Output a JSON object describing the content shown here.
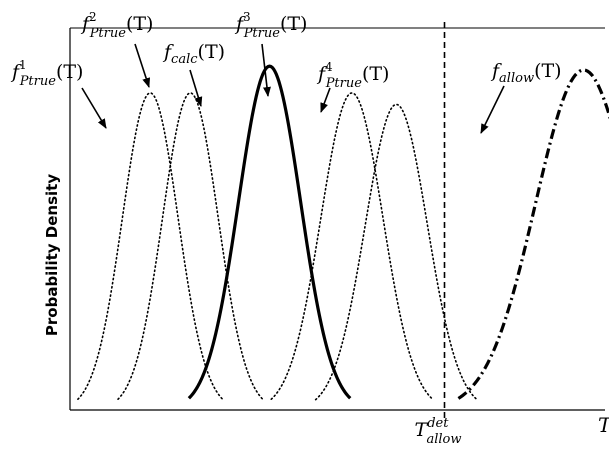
{
  "chart_data": {
    "type": "line",
    "title": "",
    "xlabel": "T",
    "ylabel": "Probability Density",
    "xlim": [
      0,
      10
    ],
    "ylim": [
      0,
      1.0
    ],
    "grid": false,
    "series": [
      {
        "name": "f^1_Ptrue(T)",
        "base": "f",
        "sub": "Ptrue",
        "sup": "1",
        "arg": "(T)",
        "style": "dotted",
        "mean": 1.5,
        "sd": 0.52,
        "amp": 0.83
      },
      {
        "name": "f^2_Ptrue(T)",
        "base": "f",
        "sub": "Ptrue",
        "sup": "2",
        "arg": "(T)",
        "style": "dotted",
        "mean": 2.25,
        "sd": 0.52,
        "amp": 0.83
      },
      {
        "name": "f_calc(T)",
        "base": "f",
        "sub": "calc",
        "sup": "",
        "arg": "(T)",
        "style": "solid",
        "mean": 3.73,
        "sd": 0.58,
        "amp": 0.9
      },
      {
        "name": "f^3_Ptrue(T)",
        "base": "f",
        "sub": "Ptrue",
        "sup": "3",
        "arg": "(T)",
        "style": "dotted",
        "mean": 5.27,
        "sd": 0.58,
        "amp": 0.83
      },
      {
        "name": "f^4_Ptrue(T)",
        "base": "f",
        "sub": "Ptrue",
        "sup": "4",
        "arg": "(T)",
        "style": "dotted",
        "mean": 6.1,
        "sd": 0.58,
        "amp": 0.8
      },
      {
        "name": "f_allow(T)",
        "base": "f",
        "sub": "allow",
        "sup": "",
        "arg": "(T)",
        "style": "dashdot",
        "mean": 9.6,
        "sd": 0.9,
        "amp": 0.89
      }
    ],
    "vertical_line": {
      "x": 7.0,
      "style": "dashed",
      "label_base": "T",
      "label_sub": "allow",
      "label_sup": "det"
    }
  }
}
